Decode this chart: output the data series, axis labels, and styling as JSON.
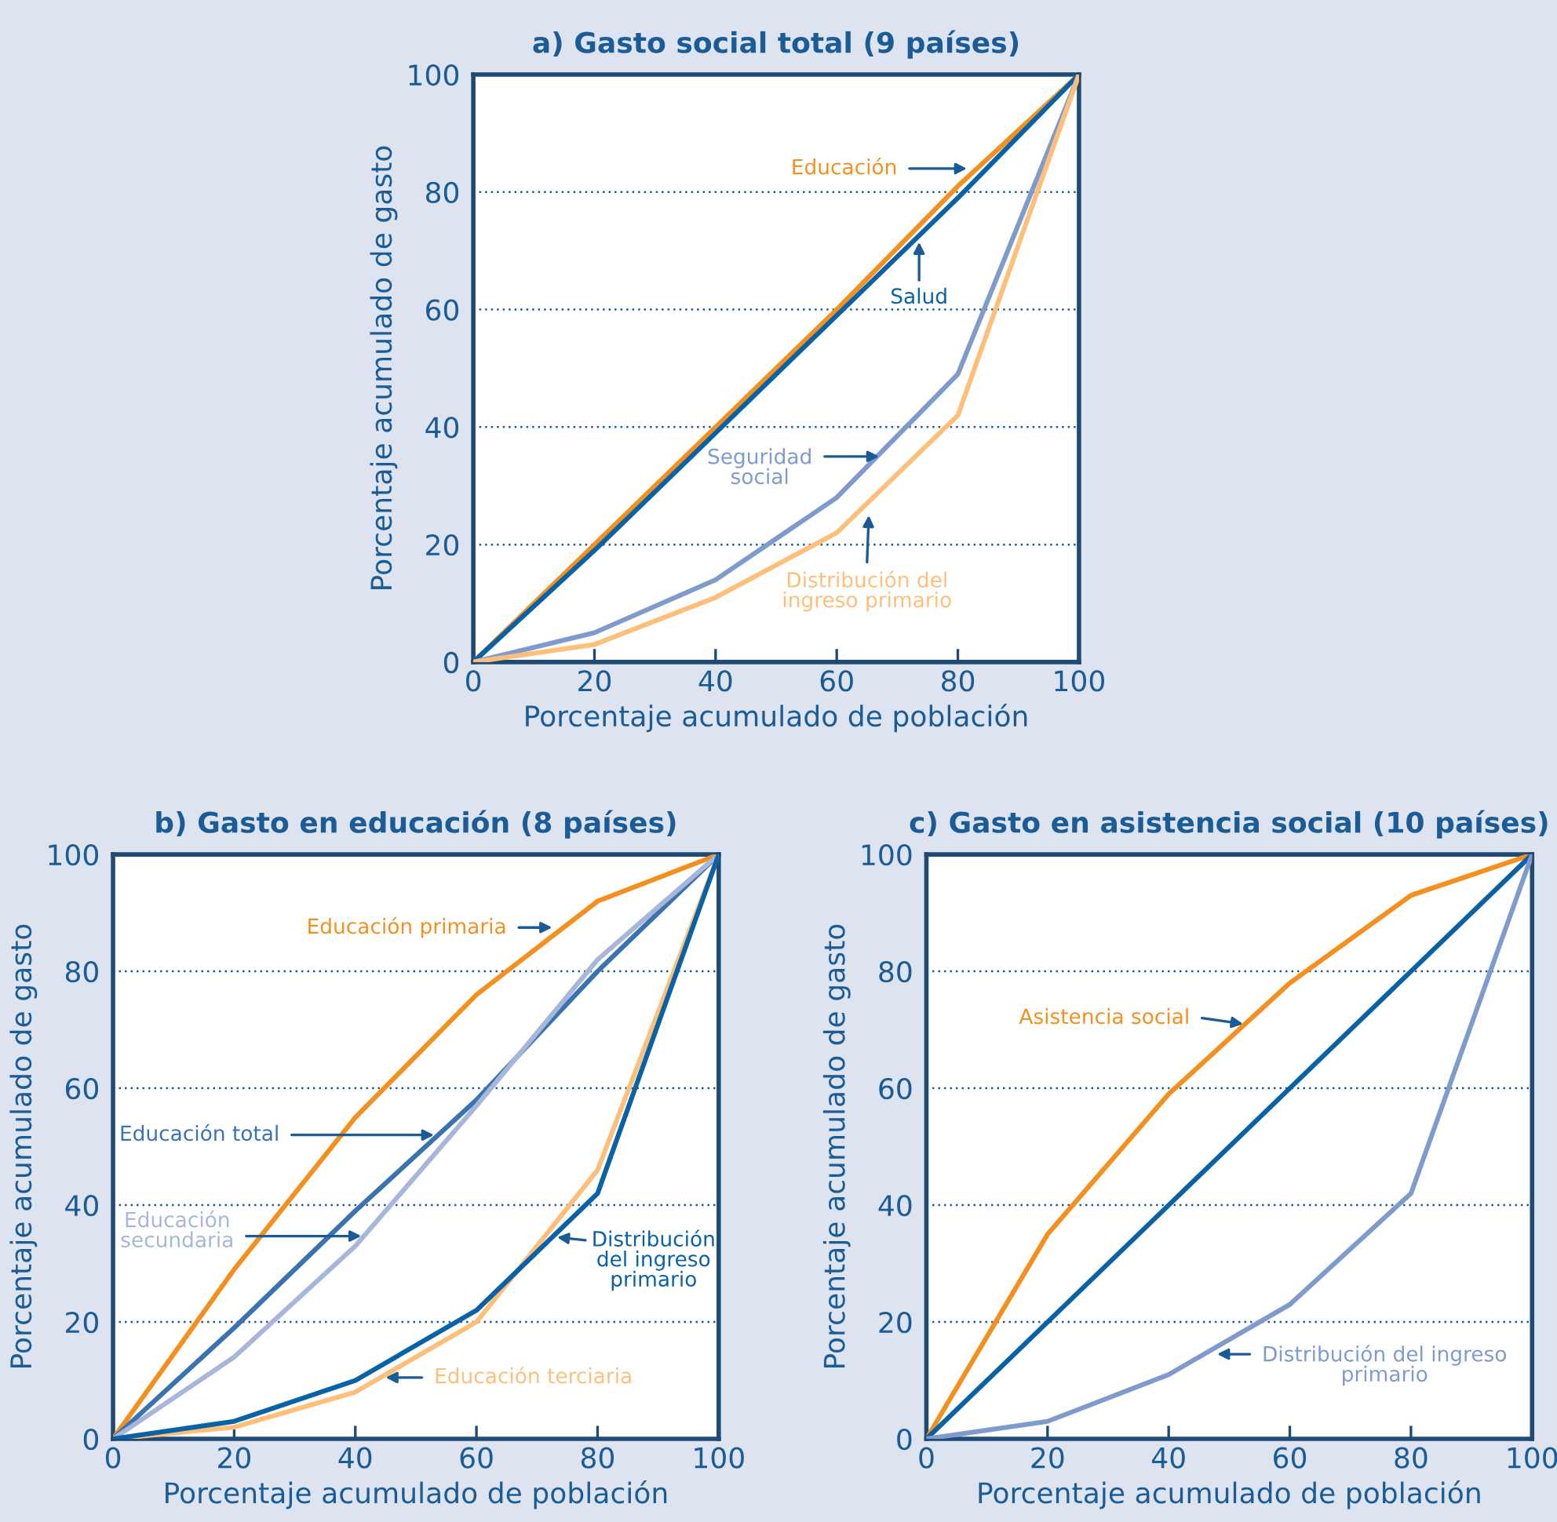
{
  "chart_data": [
    {
      "type": "line",
      "title": "a) Gasto social total (9 países)",
      "xlabel": "Porcentaje acumulado de población",
      "ylabel": "Porcentaje acumulado de gasto",
      "x": [
        0,
        20,
        40,
        60,
        80,
        100
      ],
      "xlim": [
        0,
        100
      ],
      "ylim": [
        0,
        100
      ],
      "xticks": [
        0,
        20,
        40,
        60,
        80,
        100
      ],
      "yticks": [
        0,
        20,
        40,
        60,
        80,
        100
      ],
      "grid": "y",
      "legend": false,
      "marker": "none",
      "line_style": "solid",
      "series": [
        {
          "name": "Educación",
          "color": "#f39020",
          "values": [
            0,
            20,
            40,
            60,
            81,
            100
          ]
        },
        {
          "name": "Salud",
          "color": "#0a62a6",
          "values": [
            0,
            19,
            39,
            59,
            79,
            100
          ]
        },
        {
          "name": "Seguridad\nsocial",
          "color": "#7f9bcb",
          "values": [
            0,
            5,
            14,
            28,
            49,
            100
          ]
        },
        {
          "name": "Distribución del\ningreso primario",
          "color": "#fdbf7a",
          "values": [
            0,
            3,
            11,
            22,
            42,
            100
          ]
        }
      ]
    },
    {
      "type": "line",
      "title": "b) Gasto en educación (8 países)",
      "xlabel": "Porcentaje acumulado de población",
      "ylabel": "Porcentaje acumulado de gasto",
      "x": [
        0,
        20,
        40,
        60,
        80,
        100
      ],
      "xlim": [
        0,
        100
      ],
      "ylim": [
        0,
        100
      ],
      "xticks": [
        0,
        20,
        40,
        60,
        80,
        100
      ],
      "yticks": [
        0,
        20,
        40,
        60,
        80,
        100
      ],
      "grid": "y",
      "legend": false,
      "marker": "none",
      "line_style": "solid",
      "series": [
        {
          "name": "Educación primaria",
          "color": "#f39020",
          "values": [
            0,
            29,
            55,
            76,
            92,
            100
          ]
        },
        {
          "name": "Educación total",
          "color": "#3b72b0",
          "values": [
            0,
            19,
            39,
            58,
            80,
            100
          ]
        },
        {
          "name": "Educación\nsecundaria",
          "color": "#a8b6db",
          "values": [
            0,
            14,
            33,
            57,
            82,
            100
          ]
        },
        {
          "name": "Educación terciaria",
          "color": "#fdbf7a",
          "values": [
            0,
            2,
            8,
            20,
            46,
            100
          ]
        },
        {
          "name": "Distribución\ndel ingreso\nprimario",
          "color": "#0a62a6",
          "values": [
            0,
            3,
            10,
            22,
            42,
            100
          ]
        }
      ]
    },
    {
      "type": "line",
      "title": "c) Gasto en asistencia social (10 países)",
      "xlabel": "Porcentaje acumulado de población",
      "ylabel": "Porcentaje acumulado de gasto",
      "x": [
        0,
        20,
        40,
        60,
        80,
        100
      ],
      "xlim": [
        0,
        100
      ],
      "ylim": [
        0,
        100
      ],
      "xticks": [
        0,
        20,
        40,
        60,
        80,
        100
      ],
      "yticks": [
        0,
        20,
        40,
        60,
        80,
        100
      ],
      "grid": "y",
      "legend": false,
      "marker": "none",
      "line_style": "solid",
      "series": [
        {
          "name": "Asistencia social",
          "color": "#f39020",
          "values": [
            0,
            35,
            59,
            78,
            93,
            100
          ]
        },
        {
          "color": "#0a62a6",
          "values": [
            0,
            20,
            40,
            60,
            80,
            100
          ]
        },
        {
          "name": "Distribución del ingreso\nprimario",
          "color": "#7f9bcb",
          "values": [
            0,
            3,
            11,
            23,
            42,
            100
          ]
        }
      ]
    }
  ]
}
